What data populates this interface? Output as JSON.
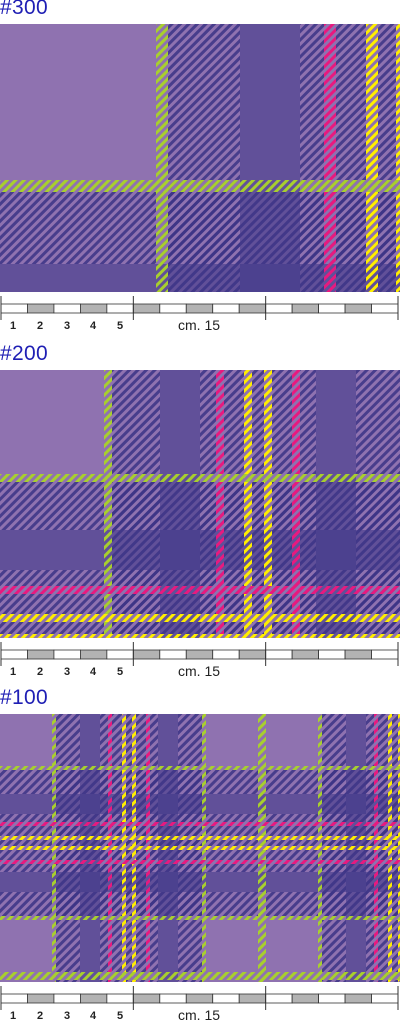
{
  "swatches": [
    {
      "title": "#300",
      "scale": 3,
      "colors": {
        "base": "#8f72b0",
        "dark": "#3c3486",
        "green": "#a8cf2e",
        "pink": "#e8197f",
        "yellow": "#ffee00"
      }
    },
    {
      "title": "#200",
      "scale": 2,
      "colors": {
        "base": "#8f72b0",
        "dark": "#3c3486",
        "green": "#a8cf2e",
        "pink": "#e8197f",
        "yellow": "#ffee00"
      }
    },
    {
      "title": "#100",
      "scale": 1,
      "colors": {
        "base": "#8f72b0",
        "dark": "#3c3486",
        "green": "#a8cf2e",
        "pink": "#e8197f",
        "yellow": "#ffee00"
      }
    }
  ],
  "ruler": {
    "numbers": [
      "1",
      "2",
      "3",
      "4",
      "5"
    ],
    "caption": "cm. 15",
    "segments": 15
  }
}
